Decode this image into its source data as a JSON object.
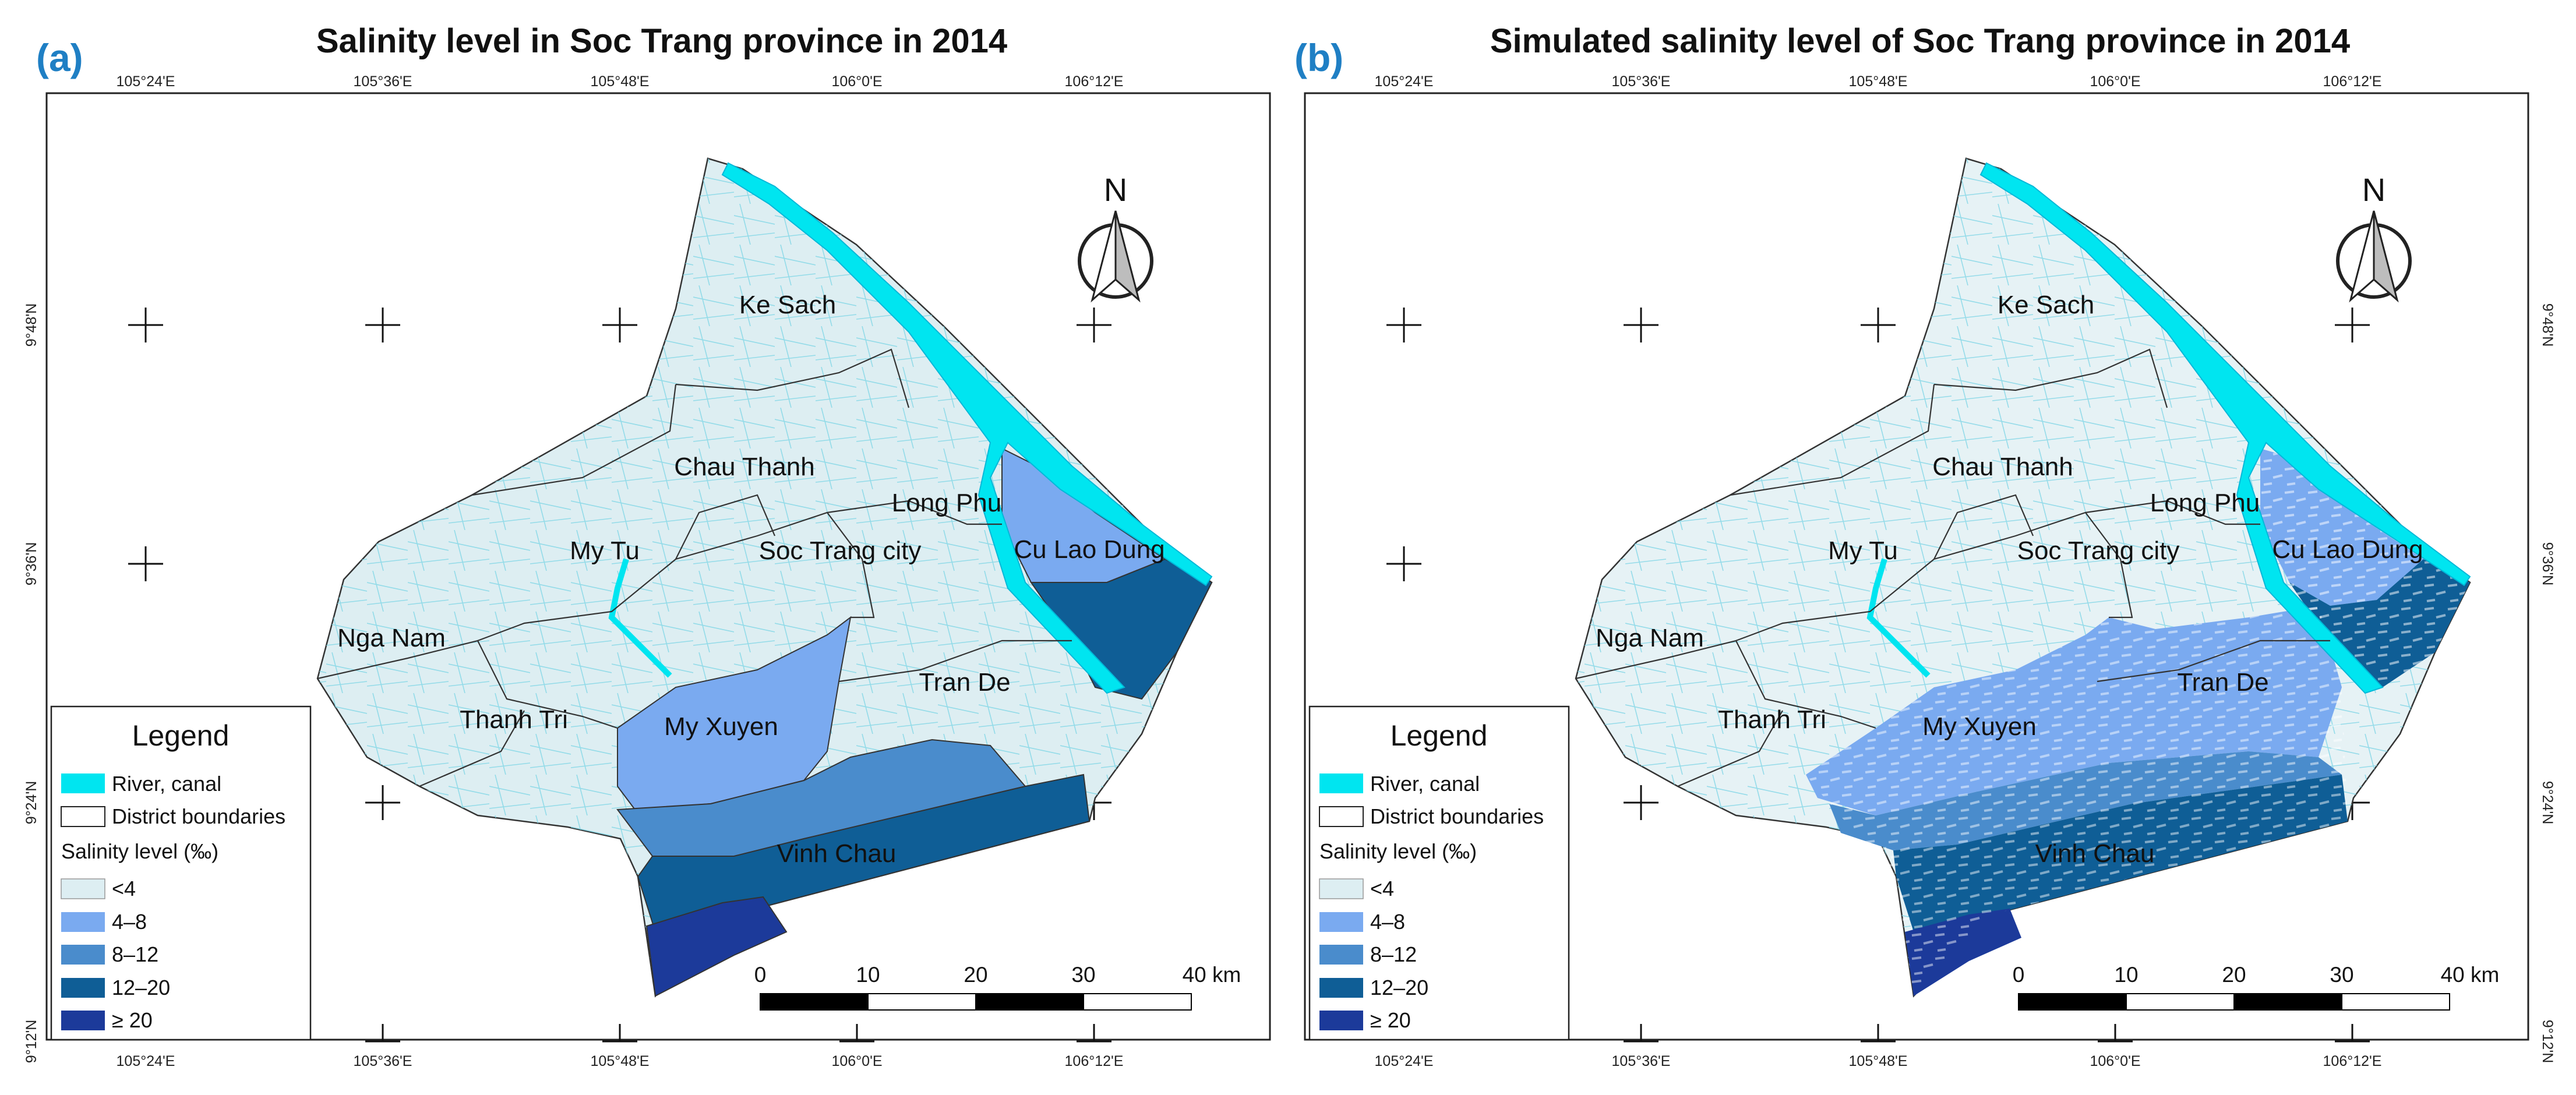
{
  "panels": [
    {
      "label": "(a)",
      "title": "Salinity level in Soc Trang province in 2014",
      "simulated": false
    },
    {
      "label": "(b)",
      "title": "Simulated salinity level of Soc Trang province in 2014",
      "simulated": true
    }
  ],
  "coords": {
    "lon": [
      "105°24'E",
      "105°36'E",
      "105°48'E",
      "106°0'E",
      "106°12'E"
    ],
    "lat": [
      "9°48'N",
      "9°36'N",
      "9°24'N",
      "9°12'N"
    ]
  },
  "districts": [
    "Ke Sach",
    "Chau Thanh",
    "Long Phu",
    "Cu Lao Dung",
    "My Tu",
    "Soc Trang city",
    "Nga Nam",
    "Tran De",
    "Thanh Tri",
    "My Xuyen",
    "Vinh Chau"
  ],
  "legend": {
    "title": "Legend",
    "river": "River, canal",
    "boundaries": "District boundaries",
    "salinity_title": "Salinity level (‰)",
    "classes": [
      {
        "label": "<4",
        "color": "#ddeef2"
      },
      {
        "label": "4–8",
        "color": "#7aaaf0"
      },
      {
        "label": "8–12",
        "color": "#4a8ccc"
      },
      {
        "label": "12–20",
        "color": "#0f5e96"
      },
      {
        "label": "≥ 20",
        "color": "#1c3a9a"
      }
    ],
    "river_color": "#00e5f0"
  },
  "scale": {
    "ticks": [
      "0",
      "10",
      "20",
      "30",
      "40 km"
    ]
  },
  "north": "N"
}
